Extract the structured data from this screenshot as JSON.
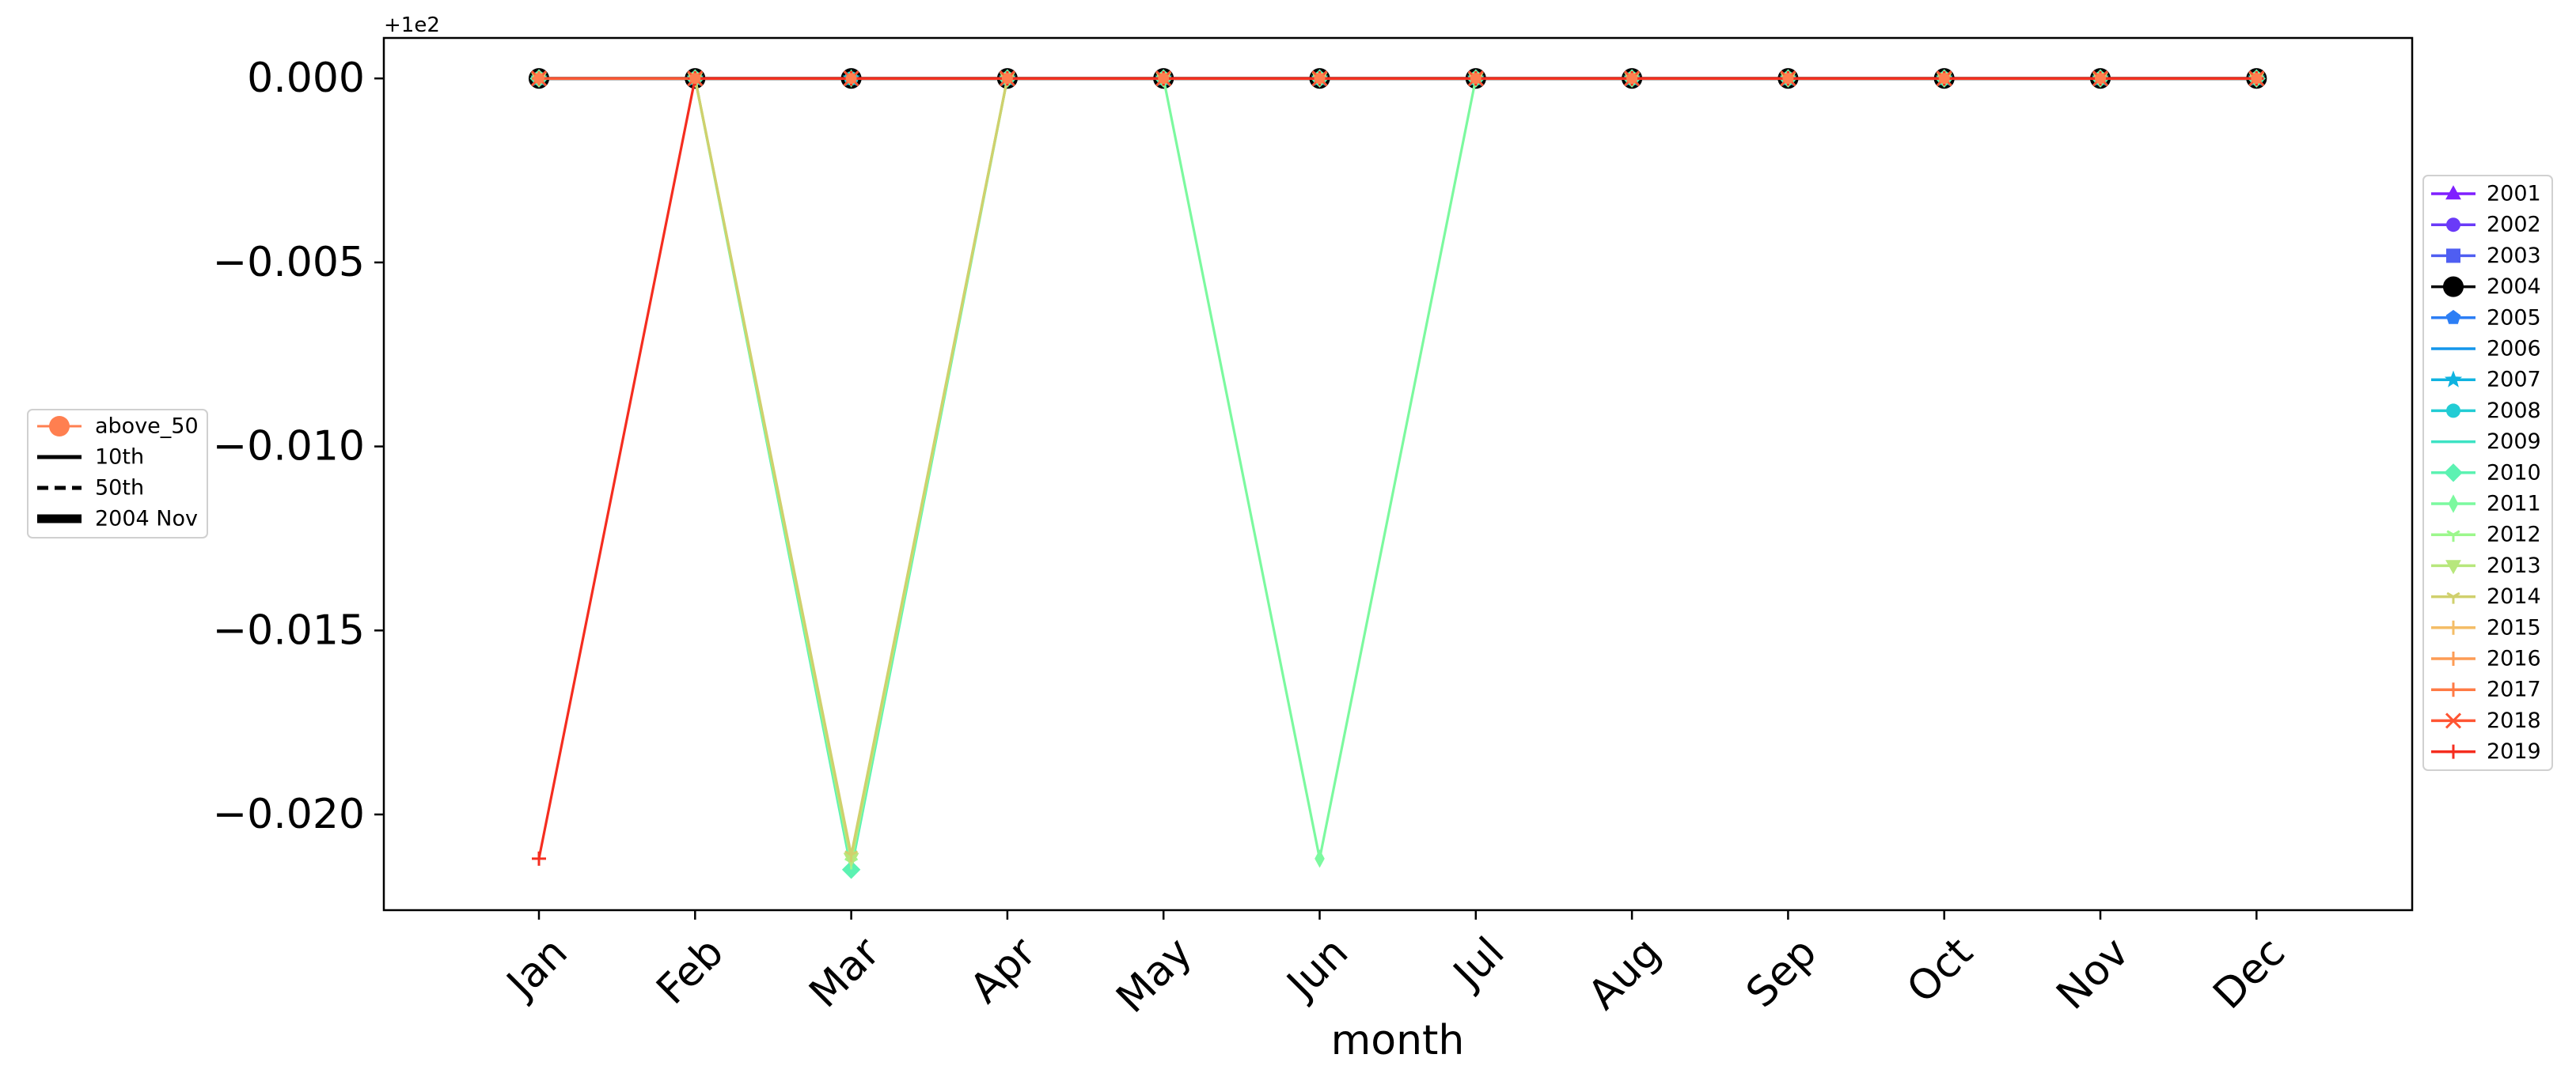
{
  "chart_data": {
    "type": "line",
    "xlabel": "month",
    "ylabel": "",
    "offset_label": "+1e2",
    "x": [
      "Jan",
      "Feb",
      "Mar",
      "Apr",
      "May",
      "Jun",
      "Jul",
      "Aug",
      "Sep",
      "Oct",
      "Nov",
      "Dec"
    ],
    "yticks": [
      0.0,
      -0.005,
      -0.01,
      -0.015,
      -0.02
    ],
    "ytick_labels": [
      "0.000",
      "−0.005",
      "−0.010",
      "−0.015",
      "−0.020"
    ],
    "ylim": [
      -0.0226,
      0.0011
    ],
    "grid": false,
    "legend_left": {
      "placement": "center-left",
      "entries": [
        {
          "label": "above_50",
          "style": "marker",
          "color": "#ff7f50"
        },
        {
          "label": "10th",
          "style": "solid",
          "color": "#000000"
        },
        {
          "label": "50th",
          "style": "dashed",
          "color": "#000000"
        },
        {
          "label": "2004 Nov",
          "style": "thick",
          "color": "#000000"
        }
      ]
    },
    "legend_right": {
      "placement": "center-right"
    },
    "series": [
      {
        "name": "2001",
        "color": "#7f1fff",
        "marker": "triangle",
        "values": [
          0,
          0,
          0,
          0,
          0,
          0,
          0,
          0,
          0,
          0,
          0,
          0
        ]
      },
      {
        "name": "2002",
        "color": "#6a3af8",
        "marker": "circle",
        "values": [
          0,
          0,
          0,
          0,
          0,
          0,
          0,
          0,
          0,
          0,
          0,
          0
        ]
      },
      {
        "name": "2003",
        "color": "#4f5ef2",
        "marker": "square",
        "values": [
          0,
          0,
          0,
          0,
          0,
          0,
          0,
          0,
          0,
          0,
          0,
          0
        ]
      },
      {
        "name": "2004",
        "color": "#000000",
        "marker": "bigcircle",
        "values": [
          0,
          0,
          0,
          0,
          0,
          0,
          0,
          0,
          0,
          0,
          0,
          0
        ]
      },
      {
        "name": "2005",
        "color": "#2c7ef5",
        "marker": "pentagon",
        "values": [
          0,
          0,
          0,
          0,
          0,
          0,
          0,
          0,
          0,
          0,
          0,
          0
        ]
      },
      {
        "name": "2006",
        "color": "#1496eb",
        "marker": "none",
        "values": [
          0,
          0,
          0,
          0,
          0,
          0,
          0,
          0,
          0,
          0,
          0,
          0
        ]
      },
      {
        "name": "2007",
        "color": "#0fb3e0",
        "marker": "star",
        "values": [
          0,
          0,
          0,
          0,
          0,
          0,
          0,
          0,
          0,
          0,
          0,
          0
        ]
      },
      {
        "name": "2008",
        "color": "#22ccd4",
        "marker": "circle",
        "values": [
          0,
          0,
          0,
          0,
          0,
          0,
          0,
          0,
          0,
          0,
          0,
          0
        ]
      },
      {
        "name": "2009",
        "color": "#3ee3c4",
        "marker": "none",
        "values": [
          0,
          0,
          0,
          0,
          0,
          0,
          0,
          0,
          0,
          0,
          0,
          0
        ]
      },
      {
        "name": "2010",
        "color": "#5cf2b2",
        "marker": "diamond",
        "values": [
          0,
          0,
          -0.0215,
          0,
          0,
          0,
          0,
          0,
          0,
          0,
          0,
          0
        ]
      },
      {
        "name": "2011",
        "color": "#7cf99f",
        "marker": "thindiamond",
        "values": [
          0,
          0,
          0,
          0,
          0,
          -0.0212,
          0,
          0,
          0,
          0,
          0,
          0
        ]
      },
      {
        "name": "2012",
        "color": "#9cf78c",
        "marker": "tri",
        "values": [
          0,
          0,
          -0.0213,
          0,
          0,
          0,
          0,
          0,
          0,
          0,
          0,
          0
        ]
      },
      {
        "name": "2013",
        "color": "#b7e77c",
        "marker": "triangle-down",
        "values": [
          0,
          0,
          -0.0212,
          0,
          0,
          0,
          0,
          0,
          0,
          0,
          0,
          0
        ]
      },
      {
        "name": "2014",
        "color": "#d0d06d",
        "marker": "tri",
        "values": [
          0,
          0,
          -0.0211,
          0,
          0,
          0,
          0,
          0,
          0,
          0,
          0,
          0
        ]
      },
      {
        "name": "2015",
        "color": "#f4bd67",
        "marker": "plus",
        "values": [
          0,
          0,
          0,
          0,
          0,
          0,
          0,
          0,
          0,
          0,
          0,
          0
        ]
      },
      {
        "name": "2016",
        "color": "#fd9c55",
        "marker": "plus",
        "values": [
          0,
          0,
          0,
          0,
          0,
          0,
          0,
          0,
          0,
          0,
          0,
          0
        ]
      },
      {
        "name": "2017",
        "color": "#ff7a44",
        "marker": "plus",
        "values": [
          0,
          0,
          0,
          0,
          0,
          0,
          0,
          0,
          0,
          0,
          0,
          0
        ]
      },
      {
        "name": "2018",
        "color": "#ff5533",
        "marker": "x",
        "values": [
          0,
          0,
          0,
          0,
          0,
          0,
          0,
          0,
          0,
          0,
          0,
          0
        ]
      },
      {
        "name": "2019",
        "color": "#f52d1f",
        "marker": "plus",
        "values": [
          -0.0212,
          0,
          0,
          0,
          0,
          0,
          0,
          0,
          0,
          0,
          0,
          0
        ]
      }
    ]
  }
}
